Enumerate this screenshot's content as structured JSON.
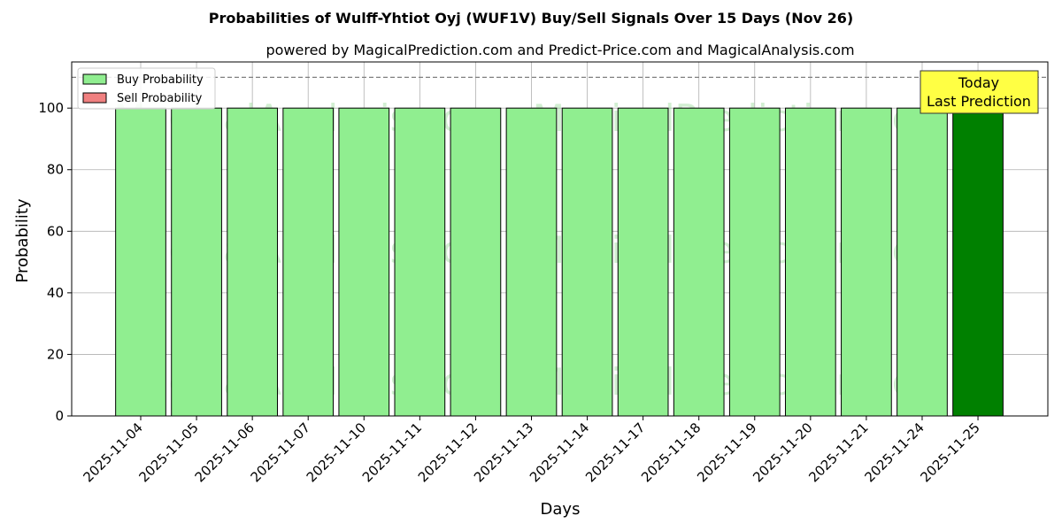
{
  "chart_data": {
    "type": "bar",
    "title": "Probabilities of Wulff-Yhtiot Oyj (WUF1V) Buy/Sell Signals Over 15 Days (Nov 26)",
    "subtitle": "powered by MagicalPrediction.com and Predict-Price.com and MagicalAnalysis.com",
    "xlabel": "Days",
    "ylabel": "Probability",
    "ylim": [
      0,
      115
    ],
    "yticks": [
      0,
      20,
      40,
      60,
      80,
      100
    ],
    "reference_line": 110,
    "grid": true,
    "legend_position": "top-left",
    "categories": [
      "2025-11-04",
      "2025-11-05",
      "2025-11-06",
      "2025-11-07",
      "2025-11-10",
      "2025-11-11",
      "2025-11-12",
      "2025-11-13",
      "2025-11-14",
      "2025-11-17",
      "2025-11-18",
      "2025-11-19",
      "2025-11-20",
      "2025-11-21",
      "2025-11-24",
      "2025-11-25"
    ],
    "series": [
      {
        "name": "Buy Probability",
        "color": "#90ee90",
        "highlight_color": "#008000",
        "values": [
          100,
          100,
          100,
          100,
          100,
          100,
          100,
          100,
          100,
          100,
          100,
          100,
          100,
          100,
          100,
          100
        ]
      },
      {
        "name": "Sell Probability",
        "color": "#f08080",
        "values": [
          0,
          0,
          0,
          0,
          0,
          0,
          0,
          0,
          0,
          0,
          0,
          0,
          0,
          0,
          0,
          0
        ]
      }
    ],
    "annotation": {
      "lines": [
        "Today",
        "Last Prediction"
      ],
      "color": "#ffff44"
    },
    "watermarks": [
      "MagicalAnalysis.com",
      "MagicalPrediction.com"
    ]
  }
}
